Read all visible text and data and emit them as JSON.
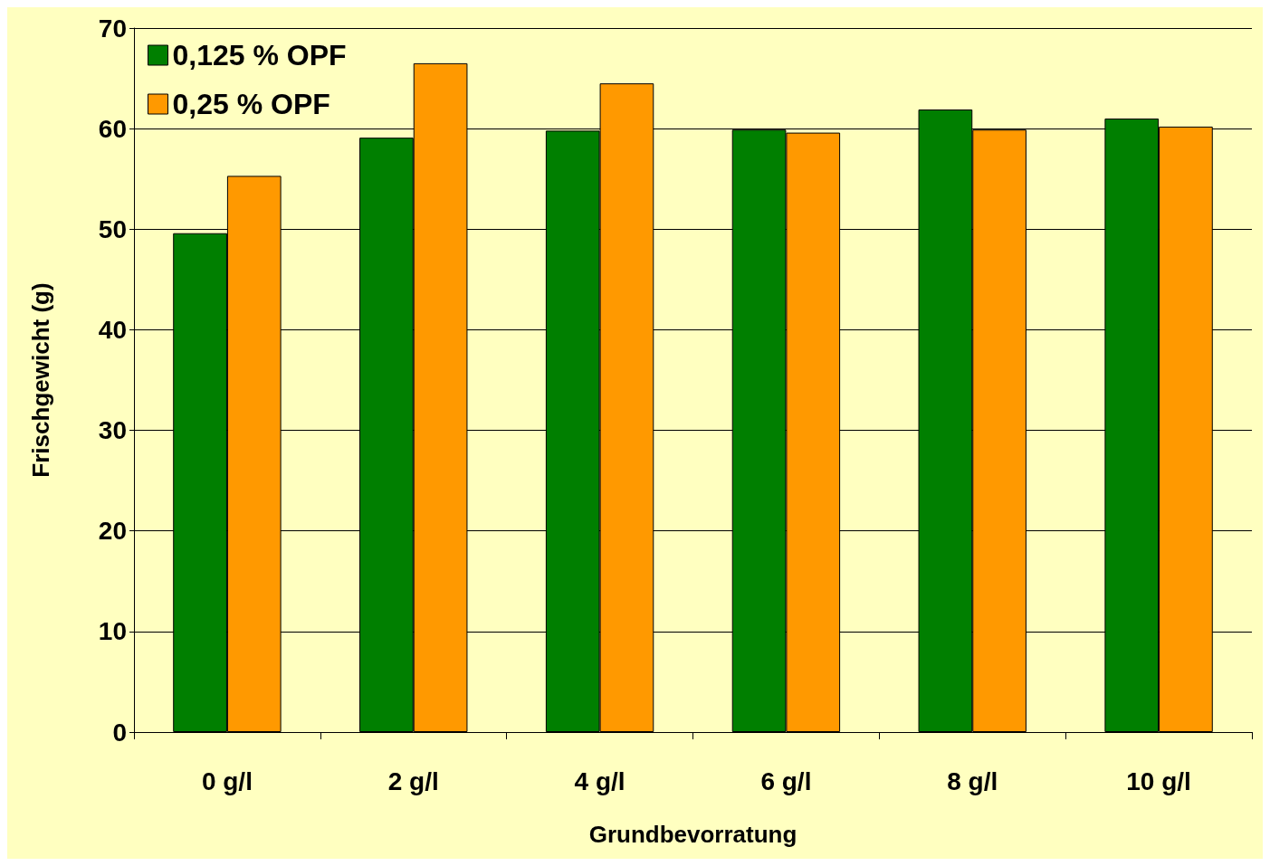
{
  "chart_data": {
    "type": "bar",
    "xlabel": "Grundbevorratung",
    "ylabel": "Frischgewicht (g)",
    "categories": [
      "0 g/l",
      "2 g/l",
      "4 g/l",
      "6 g/l",
      "8 g/l",
      "10 g/l"
    ],
    "series": [
      {
        "name": "0,125 % OPF",
        "color": "#007f00",
        "values": [
          49.6,
          59.1,
          59.8,
          59.9,
          61.9,
          61.0
        ]
      },
      {
        "name": "0,25 % OPF",
        "color": "#ff9900",
        "values": [
          55.3,
          66.5,
          64.5,
          59.6,
          59.9,
          60.2
        ]
      }
    ],
    "ylim": [
      0,
      70
    ],
    "yticks": [
      0,
      10,
      20,
      30,
      40,
      50,
      60,
      70
    ],
    "grid": "y",
    "legend": "top left"
  }
}
